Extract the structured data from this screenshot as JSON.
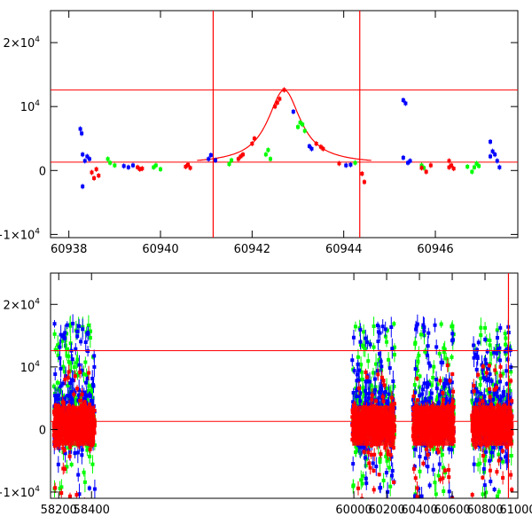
{
  "chart_data": [
    {
      "type": "scatter",
      "title": "",
      "xlabel": "",
      "ylabel": "",
      "xlim": [
        60937.6,
        60947.8
      ],
      "ylim": [
        -10500,
        25000
      ],
      "x_ticks": [
        {
          "value": 60938,
          "label": "60938"
        },
        {
          "value": 60940,
          "label": "60940"
        },
        {
          "value": 60942,
          "label": "60942"
        },
        {
          "value": 60944,
          "label": "60944"
        },
        {
          "value": 60946,
          "label": "60946"
        }
      ],
      "y_ticks": [
        {
          "value": -10000,
          "base": "−1×10",
          "exp": "4"
        },
        {
          "value": 0,
          "base": "0",
          "exp": ""
        },
        {
          "value": 10000,
          "base": "10",
          "exp": "4"
        },
        {
          "value": 20000,
          "base": "2×10",
          "exp": "4"
        }
      ],
      "hlines": [
        12600,
        1300
      ],
      "vlines": [
        60941.15,
        60944.35
      ],
      "model_curve": {
        "color": "#ff0000",
        "peak_x": 60942.7,
        "peak_y": 12600,
        "baseline": 1000,
        "width": 0.55
      },
      "series": [
        {
          "color": "#0000ff",
          "points": [
            [
              60938.25,
              6500
            ],
            [
              60938.28,
              5800
            ],
            [
              60938.3,
              2500
            ],
            [
              60938.35,
              1500
            ],
            [
              60938.4,
              2200
            ],
            [
              60938.45,
              1800
            ],
            [
              60938.3,
              -2500
            ],
            [
              60939.2,
              700
            ],
            [
              60939.3,
              500
            ],
            [
              60939.4,
              800
            ],
            [
              60941.05,
              1800
            ],
            [
              60941.1,
              2400
            ],
            [
              60941.2,
              1600
            ],
            [
              60942.9,
              9200
            ],
            [
              60943.25,
              3800
            ],
            [
              60943.3,
              3400
            ],
            [
              60944.05,
              800
            ],
            [
              60944.15,
              900
            ],
            [
              60945.3,
              11000
            ],
            [
              60945.35,
              10500
            ],
            [
              60945.3,
              2000
            ],
            [
              60945.4,
              1200
            ],
            [
              60945.45,
              1500
            ],
            [
              60947.2,
              4500
            ],
            [
              60947.25,
              3000
            ],
            [
              60947.3,
              2500
            ],
            [
              60947.35,
              1500
            ],
            [
              60947.4,
              500
            ],
            [
              60947.2,
              2200
            ]
          ]
        },
        {
          "color": "#00ff00",
          "points": [
            [
              60938.85,
              1800
            ],
            [
              60938.9,
              1200
            ],
            [
              60939.0,
              800
            ],
            [
              60939.85,
              500
            ],
            [
              60939.9,
              800
            ],
            [
              60940.0,
              200
            ],
            [
              60941.5,
              1000
            ],
            [
              60941.55,
              1600
            ],
            [
              60942.3,
              2500
            ],
            [
              60942.35,
              3200
            ],
            [
              60942.4,
              1800
            ],
            [
              60943.0,
              6800
            ],
            [
              60943.05,
              7500
            ],
            [
              60943.1,
              7200
            ],
            [
              60943.15,
              6200
            ],
            [
              60944.25,
              1200
            ],
            [
              60945.7,
              800
            ],
            [
              60945.75,
              400
            ],
            [
              60946.7,
              600
            ],
            [
              60946.8,
              -200
            ],
            [
              60946.85,
              500
            ],
            [
              60946.9,
              1100
            ],
            [
              60946.95,
              700
            ]
          ]
        },
        {
          "color": "#ff0000",
          "points": [
            [
              60938.5,
              -300
            ],
            [
              60938.55,
              -1200
            ],
            [
              60938.6,
              200
            ],
            [
              60938.65,
              -800
            ],
            [
              60939.5,
              500
            ],
            [
              60939.55,
              200
            ],
            [
              60939.6,
              300
            ],
            [
              60940.55,
              600
            ],
            [
              60940.6,
              900
            ],
            [
              60940.65,
              400
            ],
            [
              60941.7,
              1800
            ],
            [
              60941.75,
              2200
            ],
            [
              60941.8,
              2500
            ],
            [
              60942.0,
              4200
            ],
            [
              60942.05,
              5000
            ],
            [
              60942.5,
              10000
            ],
            [
              60942.55,
              10600
            ],
            [
              60942.6,
              11200
            ],
            [
              60942.7,
              12600
            ],
            [
              60943.4,
              4200
            ],
            [
              60943.5,
              3700
            ],
            [
              60943.55,
              3400
            ],
            [
              60943.9,
              1100
            ],
            [
              60944.4,
              -500
            ],
            [
              60944.45,
              -1800
            ],
            [
              60945.7,
              400
            ],
            [
              60945.8,
              -200
            ],
            [
              60945.9,
              800
            ],
            [
              60946.3,
              1500
            ],
            [
              60946.3,
              500
            ],
            [
              60946.35,
              800
            ],
            [
              60946.4,
              300
            ]
          ]
        }
      ]
    },
    {
      "type": "scatter",
      "title": "",
      "xlabel": "",
      "ylabel": "",
      "xlim": [
        58150,
        61000
      ],
      "ylim": [
        -11000,
        25000
      ],
      "x_ticks": [
        {
          "value": 58200,
          "label": "58200"
        },
        {
          "value": 58400,
          "label": "58400"
        },
        {
          "value": 60000,
          "label": "60000"
        },
        {
          "value": 60200,
          "label": "60200"
        },
        {
          "value": 60400,
          "label": "60400"
        },
        {
          "value": 60600,
          "label": "60600"
        },
        {
          "value": 60800,
          "label": "60800"
        },
        {
          "value": 61000,
          "label": "61000"
        }
      ],
      "y_ticks": [
        {
          "value": -10000,
          "base": "−1×10",
          "exp": "4"
        },
        {
          "value": 0,
          "base": "0",
          "exp": ""
        },
        {
          "value": 10000,
          "base": "10",
          "exp": "4"
        },
        {
          "value": 20000,
          "base": "2×10",
          "exp": "4"
        }
      ],
      "hlines": [
        12600,
        1300
      ],
      "vlines": [
        60943
      ],
      "seasons": [
        [
          58170,
          58420
        ],
        [
          59990,
          60250
        ],
        [
          60360,
          60610
        ],
        [
          60720,
          60965
        ]
      ],
      "series_colors": [
        "#00ff00",
        "#0000ff",
        "#ff0000"
      ]
    }
  ]
}
